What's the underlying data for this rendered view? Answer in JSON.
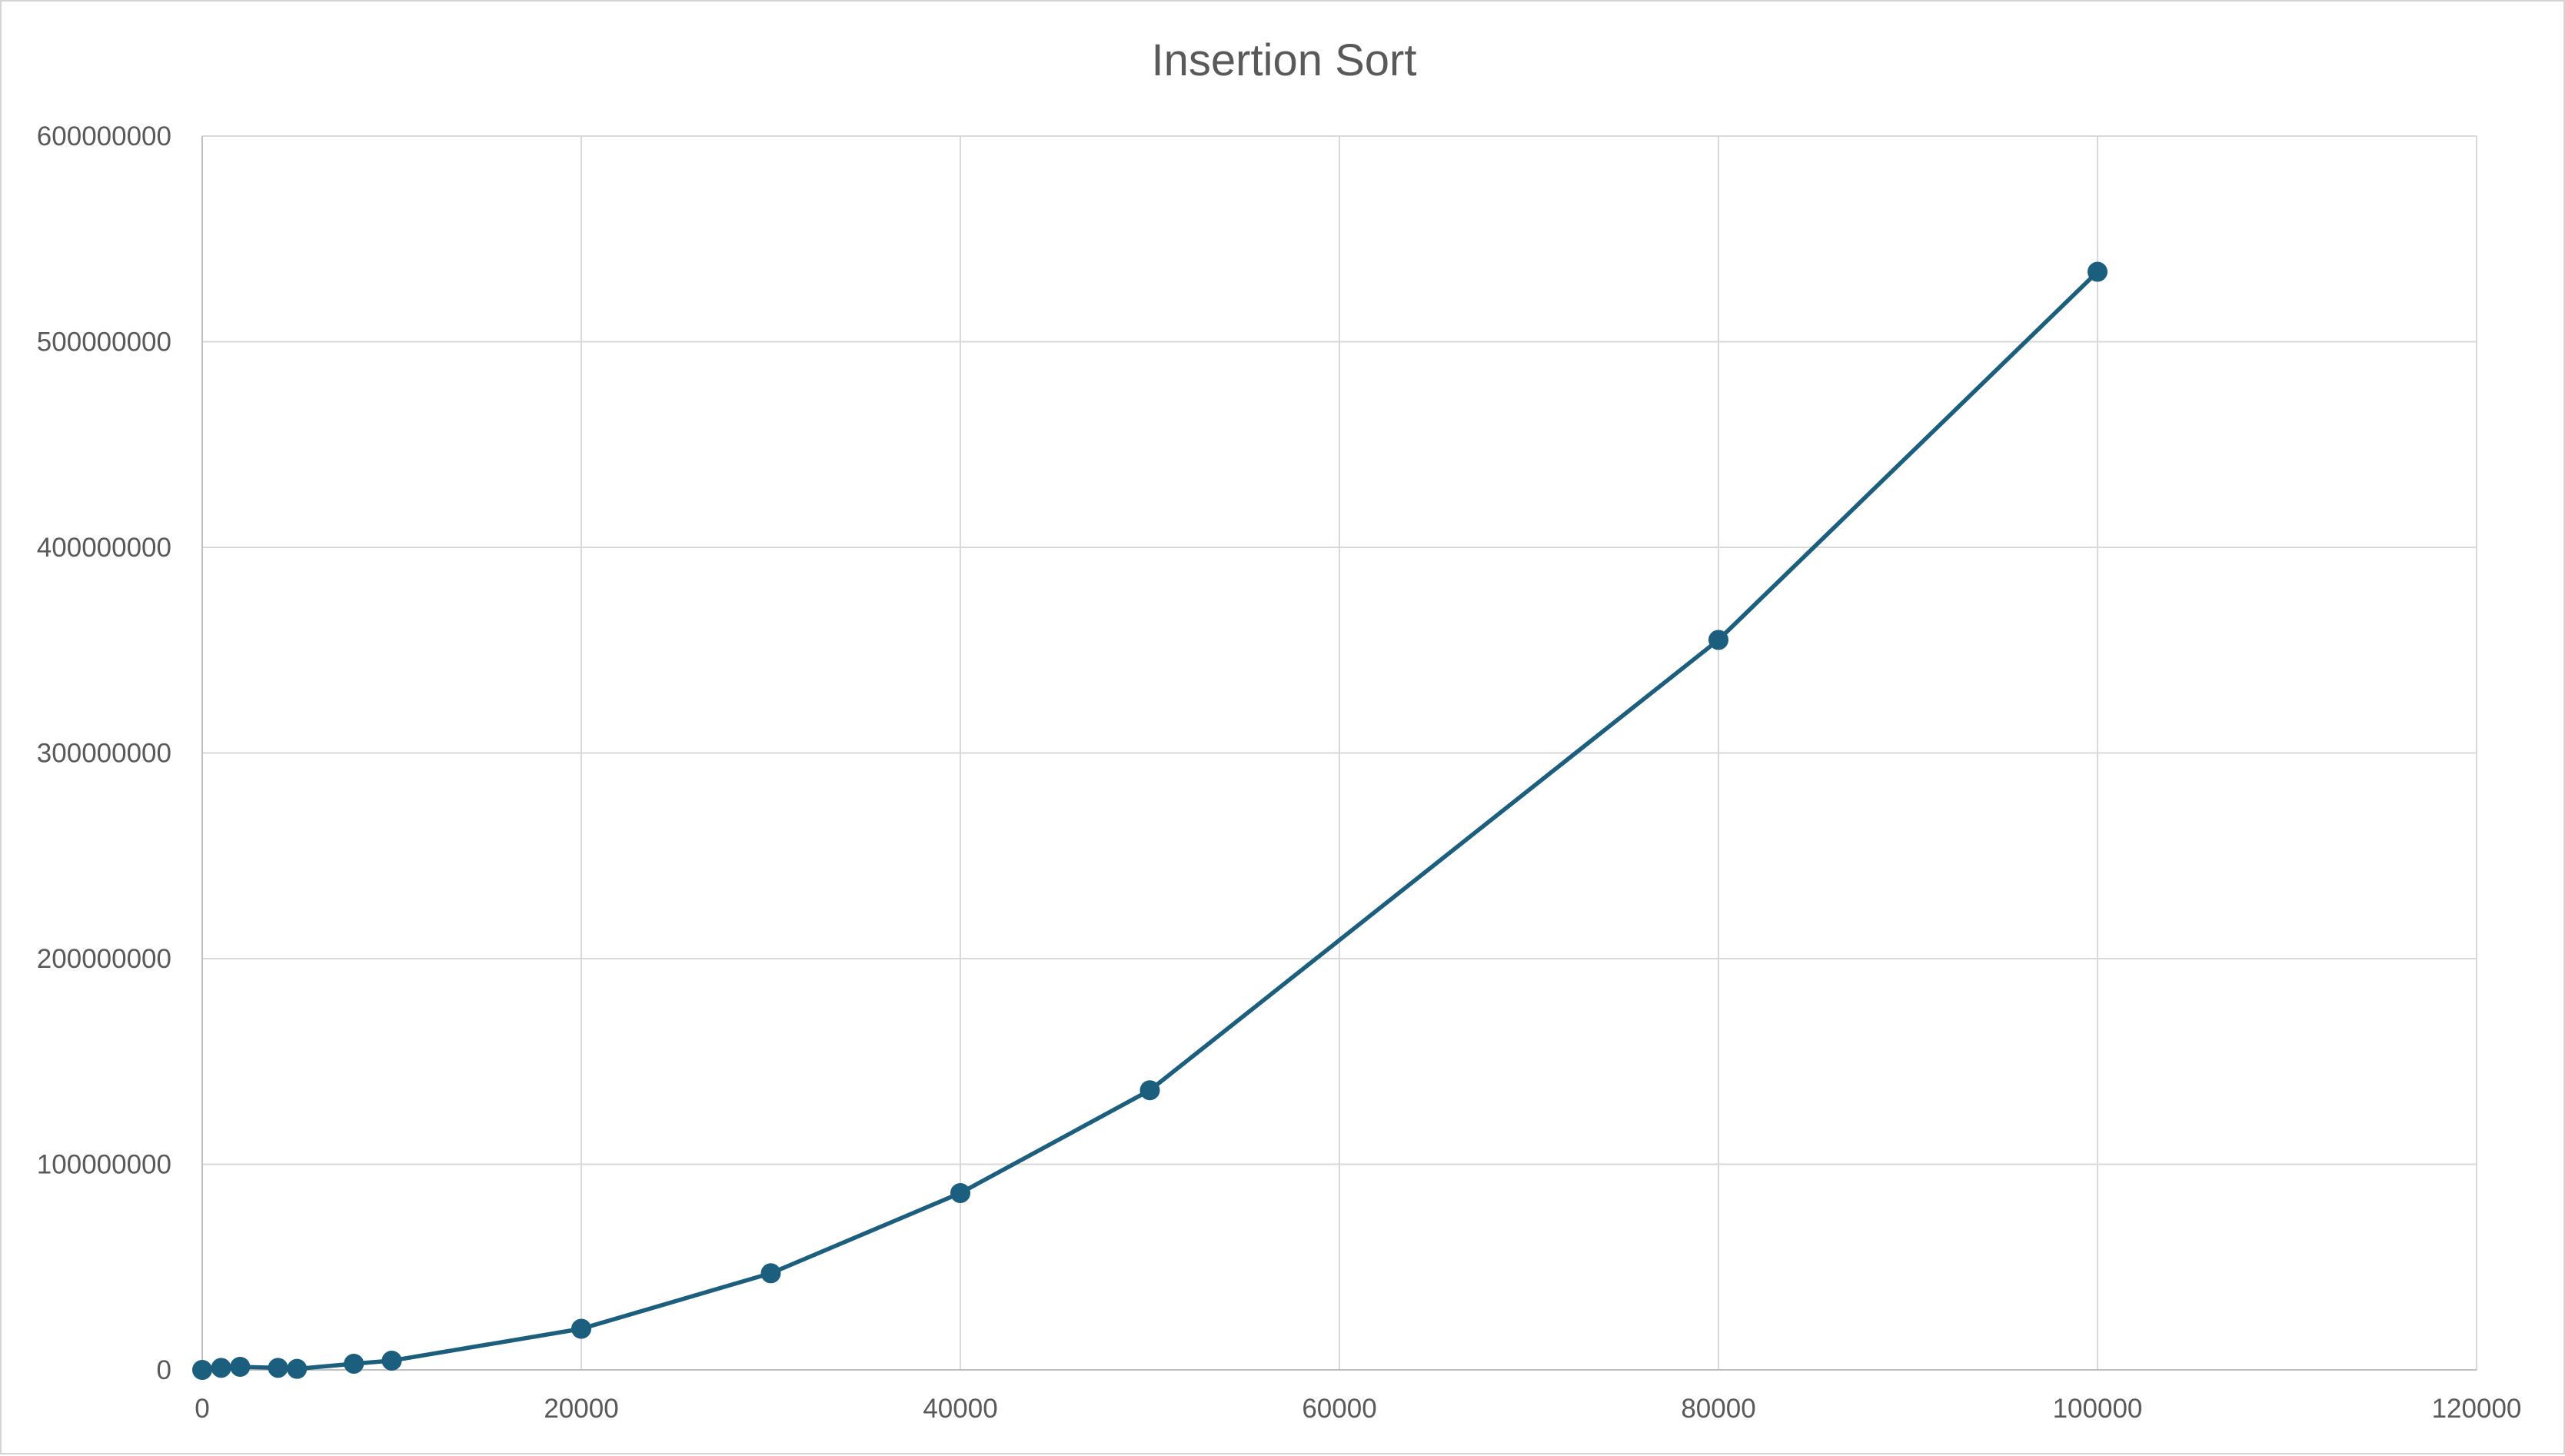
{
  "chart_data": {
    "type": "scatter",
    "title": "Insertion Sort",
    "xlabel": "",
    "ylabel": "",
    "xlim": [
      0,
      120000
    ],
    "ylim": [
      0,
      600000000
    ],
    "x_ticks": [
      0,
      20000,
      40000,
      60000,
      80000,
      100000,
      120000
    ],
    "y_ticks": [
      0,
      100000000,
      200000000,
      300000000,
      400000000,
      500000000,
      600000000
    ],
    "grid": true,
    "legend": "none",
    "markers": true,
    "connected": true,
    "series": [
      {
        "color": "#1b5e7e",
        "points": [
          {
            "x": 0,
            "y": 0
          },
          {
            "x": 1000,
            "y": 1000000
          },
          {
            "x": 2000,
            "y": 1500000
          },
          {
            "x": 4000,
            "y": 1000000
          },
          {
            "x": 5000,
            "y": 500000
          },
          {
            "x": 8000,
            "y": 3000000
          },
          {
            "x": 10000,
            "y": 4500000
          },
          {
            "x": 20000,
            "y": 20000000
          },
          {
            "x": 30000,
            "y": 47000000
          },
          {
            "x": 40000,
            "y": 86000000
          },
          {
            "x": 50000,
            "y": 136000000
          },
          {
            "x": 80000,
            "y": 355000000
          },
          {
            "x": 100000,
            "y": 534000000
          }
        ]
      }
    ]
  }
}
